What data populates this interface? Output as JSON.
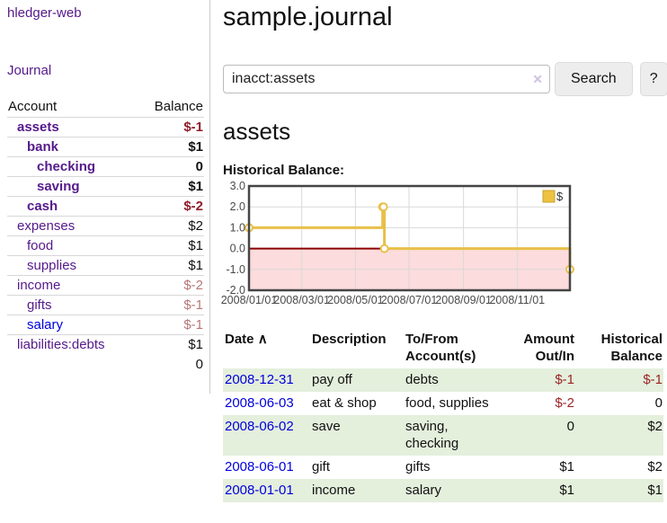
{
  "sidebar": {
    "app_title": "hledger-web",
    "journal_label": "Journal",
    "accounts": {
      "header_account": "Account",
      "header_balance": "Balance",
      "rows": [
        {
          "name": "assets",
          "balance": "$-1",
          "depth": 1,
          "bold": true,
          "negative": true,
          "unvisited": false
        },
        {
          "name": "bank",
          "balance": "$1",
          "depth": 2,
          "bold": true,
          "negative": false,
          "unvisited": false
        },
        {
          "name": "checking",
          "balance": "0",
          "depth": 3,
          "bold": true,
          "negative": false,
          "unvisited": false
        },
        {
          "name": "saving",
          "balance": "$1",
          "depth": 3,
          "bold": true,
          "negative": false,
          "unvisited": false
        },
        {
          "name": "cash",
          "balance": "$-2",
          "depth": 2,
          "bold": true,
          "negative": true,
          "unvisited": false
        },
        {
          "name": "expenses",
          "balance": "$2",
          "depth": 1,
          "bold": false,
          "negative": false,
          "unvisited": false
        },
        {
          "name": "food",
          "balance": "$1",
          "depth": 2,
          "bold": false,
          "negative": false,
          "unvisited": false
        },
        {
          "name": "supplies",
          "balance": "$1",
          "depth": 2,
          "bold": false,
          "negative": false,
          "unvisited": false
        },
        {
          "name": "income",
          "balance": "$-2",
          "depth": 1,
          "bold": false,
          "negative": true,
          "unvisited": false
        },
        {
          "name": "gifts",
          "balance": "$-1",
          "depth": 2,
          "bold": false,
          "negative": true,
          "unvisited": false
        },
        {
          "name": "salary",
          "balance": "$-1",
          "depth": 2,
          "bold": false,
          "negative": true,
          "unvisited": true
        },
        {
          "name": "liabilities:debts",
          "balance": "$1",
          "depth": 1,
          "bold": false,
          "negative": false,
          "unvisited": false
        }
      ],
      "total": "0"
    }
  },
  "header": {
    "title": "sample.journal"
  },
  "search": {
    "value": "inacct:assets",
    "clear_icon": "✕",
    "button_label": "Search",
    "help_label": "?"
  },
  "account_page": {
    "heading": "assets",
    "chart_label": "Historical Balance:"
  },
  "chart_data": {
    "type": "line",
    "step": true,
    "title": "Historical Balance",
    "legend": [
      {
        "label": "$",
        "color": "#edc240"
      }
    ],
    "legend_position": "top-right",
    "x_ticks": [
      {
        "day": 0,
        "label": "2008/01/01"
      },
      {
        "day": 60,
        "label": "2008/03/01"
      },
      {
        "day": 121,
        "label": "2008/05/01"
      },
      {
        "day": 182,
        "label": "2008/07/01"
      },
      {
        "day": 244,
        "label": "2008/09/01"
      },
      {
        "day": 305,
        "label": "2008/11/01"
      }
    ],
    "xlim_days": [
      0,
      365
    ],
    "y_ticks": [
      {
        "value": 3,
        "label": "3.0"
      },
      {
        "value": 2,
        "label": "2.0"
      },
      {
        "value": 1,
        "label": "1.0"
      },
      {
        "value": 0,
        "label": "0.0"
      },
      {
        "value": -1,
        "label": "-1.0"
      },
      {
        "value": -2,
        "label": "-2.0"
      }
    ],
    "ylim": [
      -2,
      3
    ],
    "grid": true,
    "series": [
      {
        "name": "$",
        "color": "#e8c04a",
        "points": [
          {
            "date": "2008-01-01",
            "day": 0,
            "value": 1
          },
          {
            "date": "2008-06-01",
            "day": 152,
            "value": 2
          },
          {
            "date": "2008-06-02",
            "day": 153,
            "value": 2
          },
          {
            "date": "2008-06-03",
            "day": 154,
            "value": 0
          },
          {
            "date": "2008-12-31",
            "day": 365,
            "value": -1
          }
        ]
      }
    ],
    "colors": {
      "negative_region": "#fcdcdc",
      "zero_line": "#8b0000",
      "grid": "#d9d9d9",
      "border": "#454545",
      "tick_text": "#4a4a4a"
    }
  },
  "register": {
    "headers": {
      "date": "Date",
      "sort_icon": "∧",
      "description": "Description",
      "accounts_line1": "To/From",
      "accounts_line2": "Account(s)",
      "amount_line1": "Amount",
      "amount_line2": "Out/In",
      "balance_line1": "Historical",
      "balance_line2": "Balance"
    },
    "rows": [
      {
        "date": "2008-12-31",
        "description": "pay off",
        "accounts": "debts",
        "amount": "$-1",
        "amount_negative": true,
        "balance": "$-1",
        "balance_negative": true,
        "shaded": true
      },
      {
        "date": "2008-06-03",
        "description": "eat & shop",
        "accounts": "food, supplies",
        "amount": "$-2",
        "amount_negative": true,
        "balance": "0",
        "balance_negative": false,
        "shaded": false
      },
      {
        "date": "2008-06-02",
        "description": "save",
        "accounts": "saving, checking",
        "amount": "0",
        "amount_negative": false,
        "balance": "$2",
        "balance_negative": false,
        "shaded": true
      },
      {
        "date": "2008-06-01",
        "description": "gift",
        "accounts": "gifts",
        "amount": "$1",
        "amount_negative": false,
        "balance": "$2",
        "balance_negative": false,
        "shaded": false
      },
      {
        "date": "2008-01-01",
        "description": "income",
        "accounts": "salary",
        "amount": "$1",
        "amount_negative": false,
        "balance": "$1",
        "balance_negative": false,
        "shaded": true
      }
    ]
  }
}
